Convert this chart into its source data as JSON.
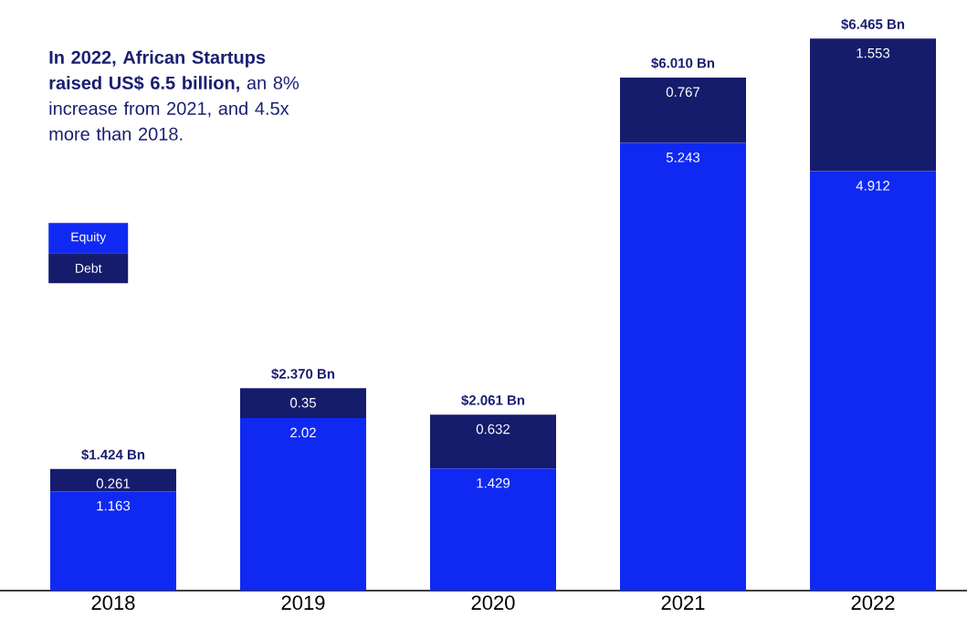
{
  "chart_data": {
    "type": "bar",
    "stacked": true,
    "title": "**In 2022, African Startups raised US$ 6.5 billion,** an 8% increase from 2021, and 4.5x more than 2018.",
    "categories": [
      "2018",
      "2019",
      "2020",
      "2021",
      "2022"
    ],
    "series": [
      {
        "name": "Equity",
        "color": "#1029f2",
        "values": [
          1.163,
          2.02,
          1.429,
          5.243,
          4.912
        ]
      },
      {
        "name": "Debt",
        "color": "#151c6c",
        "values": [
          0.261,
          0.35,
          0.632,
          0.767,
          1.553
        ]
      }
    ],
    "data_labels": true,
    "totals": [
      "$1.424 Bn",
      "$2.370 Bn",
      "$2.061 Bn",
      "$6.010 Bn",
      "$6.465 Bn"
    ],
    "legend": "left"
  }
}
